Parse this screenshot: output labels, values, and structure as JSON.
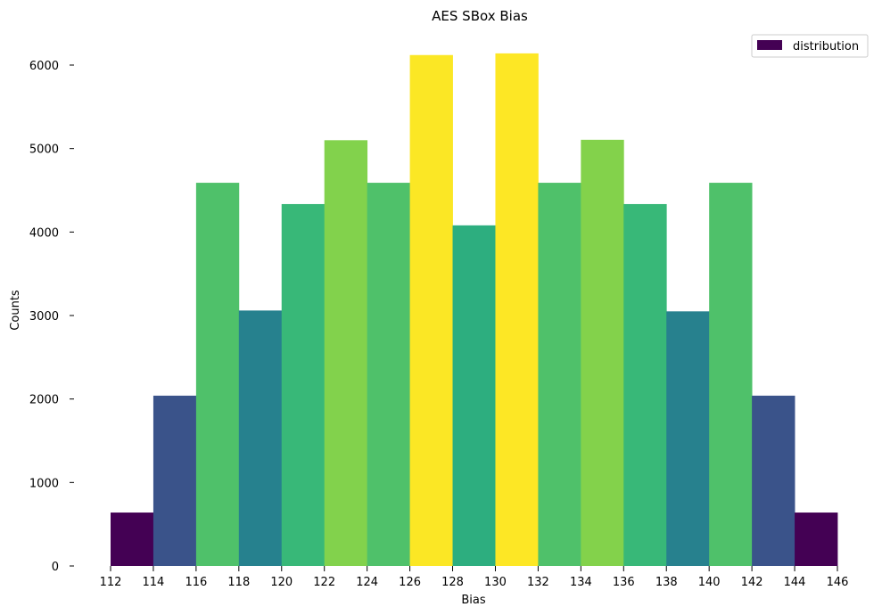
{
  "chart_data": {
    "type": "bar",
    "title": "AES SBox Bias",
    "xlabel": "Bias",
    "ylabel": "Counts",
    "bin_edges": [
      112,
      114,
      116,
      118,
      120,
      122,
      124,
      126,
      128,
      130,
      132,
      134,
      136,
      138,
      140,
      142,
      144,
      146
    ],
    "values": [
      640,
      2040,
      4590,
      3060,
      4335,
      5100,
      4590,
      6120,
      4080,
      6140,
      4590,
      5105,
      4335,
      3050,
      4590,
      2040,
      640
    ],
    "xlim": [
      112,
      146
    ],
    "ylim": [
      0,
      6400
    ],
    "xticks": [
      112,
      114,
      116,
      118,
      120,
      122,
      124,
      126,
      128,
      130,
      132,
      134,
      136,
      138,
      140,
      142,
      144,
      146
    ],
    "yticks": [
      0,
      1000,
      2000,
      3000,
      4000,
      5000,
      6000
    ],
    "legend": {
      "label": "distribution",
      "placement": "top-right",
      "swatch_color": "#440154"
    },
    "colormap": "viridis",
    "grid": false
  }
}
